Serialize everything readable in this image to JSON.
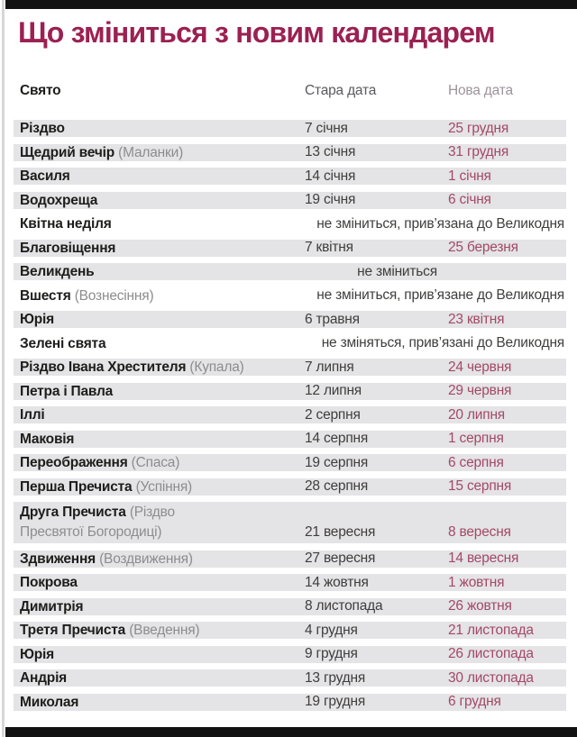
{
  "page": {
    "title": "Що зміниться з новим календарем",
    "accent_color": "#9b2152",
    "new_date_color": "#a24a66",
    "stripe_color": "#e4e3e5",
    "bar_color": "#121212"
  },
  "table": {
    "columns": {
      "holiday": "Свято",
      "old_date": "Стара дата",
      "new_date": "Нова дата"
    },
    "rows": [
      {
        "name": "Різдво",
        "old": "7 січня",
        "new": "25 грудня",
        "bg": "gray"
      },
      {
        "name": "Щедрий вечір",
        "alt": "(Маланки)",
        "old": "13 січня",
        "new": "31 грудня",
        "bg": "gray"
      },
      {
        "name": "Василя",
        "old": "14 січня",
        "new": "1 січня",
        "bg": "gray"
      },
      {
        "name": "Водохреща",
        "old": "19 січня",
        "new": "6 січня",
        "bg": "gray"
      },
      {
        "name": "Квітна неділя",
        "note": "не зміниться, прив’язана до Великодня",
        "note_align": "right",
        "bg": "white"
      },
      {
        "name": "Благовіщення",
        "old": "7 квітня",
        "new": "25 березня",
        "bg": "gray"
      },
      {
        "name": "Великдень",
        "note": "не зміниться",
        "note_align": "center",
        "bg": "gray"
      },
      {
        "name": "Вшестя",
        "alt": "(Вознесіння)",
        "note": "не зміниться, прив’язане до Великодня",
        "note_align": "right",
        "bg": "white"
      },
      {
        "name": "Юрія",
        "old": "6 травня",
        "new": "23 квітня",
        "bg": "gray"
      },
      {
        "name": "Зелені свята",
        "note": "не зміняться, прив’язані до Великодня",
        "note_align": "right",
        "bg": "white"
      },
      {
        "name": "Різдво Івана Хрестителя",
        "alt": "(Купала)",
        "old": "7 липня",
        "new": "24 червня",
        "bg": "gray"
      },
      {
        "name": "Петра і Павла",
        "old": "12 липня",
        "new": "29 червня",
        "bg": "gray"
      },
      {
        "name": "Іллі",
        "old": "2 серпня",
        "new": "20 липня",
        "bg": "gray"
      },
      {
        "name": "Маковія",
        "old": "14 серпня",
        "new": "1 серпня",
        "bg": "gray"
      },
      {
        "name": "Переображення",
        "alt": "(Спаса)",
        "old": "19 серпня",
        "new": "6 серпня",
        "bg": "gray"
      },
      {
        "name": "Перша Пречиста",
        "alt": "(Успіння)",
        "old": "28 серпня",
        "new": "15 серпня",
        "bg": "gray"
      },
      {
        "name": "Друга Пречиста",
        "alt": "(Різдво",
        "alt2": "Пресвятої Богородиці)",
        "old": "21 вересня",
        "new": "8 вересня",
        "bg": "gray",
        "tall": true
      },
      {
        "name": "Здвиження",
        "alt": "(Воздвиження)",
        "old": "27 вересня",
        "new": "14 вересня",
        "bg": "gray"
      },
      {
        "name": "Покрова",
        "old": "14 жовтня",
        "new": "1 жовтня",
        "bg": "gray"
      },
      {
        "name": "Димитрія",
        "old": "8 листопада",
        "new": "26 жовтня",
        "bg": "gray"
      },
      {
        "name": "Третя Пречиста",
        "alt": "(Введення)",
        "old": "4 грудня",
        "new": "21 листопада",
        "bg": "gray"
      },
      {
        "name": "Юрія",
        "old": "9 грудня",
        "new": "26 листопада",
        "bg": "gray"
      },
      {
        "name": "Андрія",
        "old": "13 грудня",
        "new": "30 листопада",
        "bg": "gray"
      },
      {
        "name": "Миколая",
        "old": "19 грудня",
        "new": "6 грудня",
        "bg": "gray"
      }
    ]
  }
}
